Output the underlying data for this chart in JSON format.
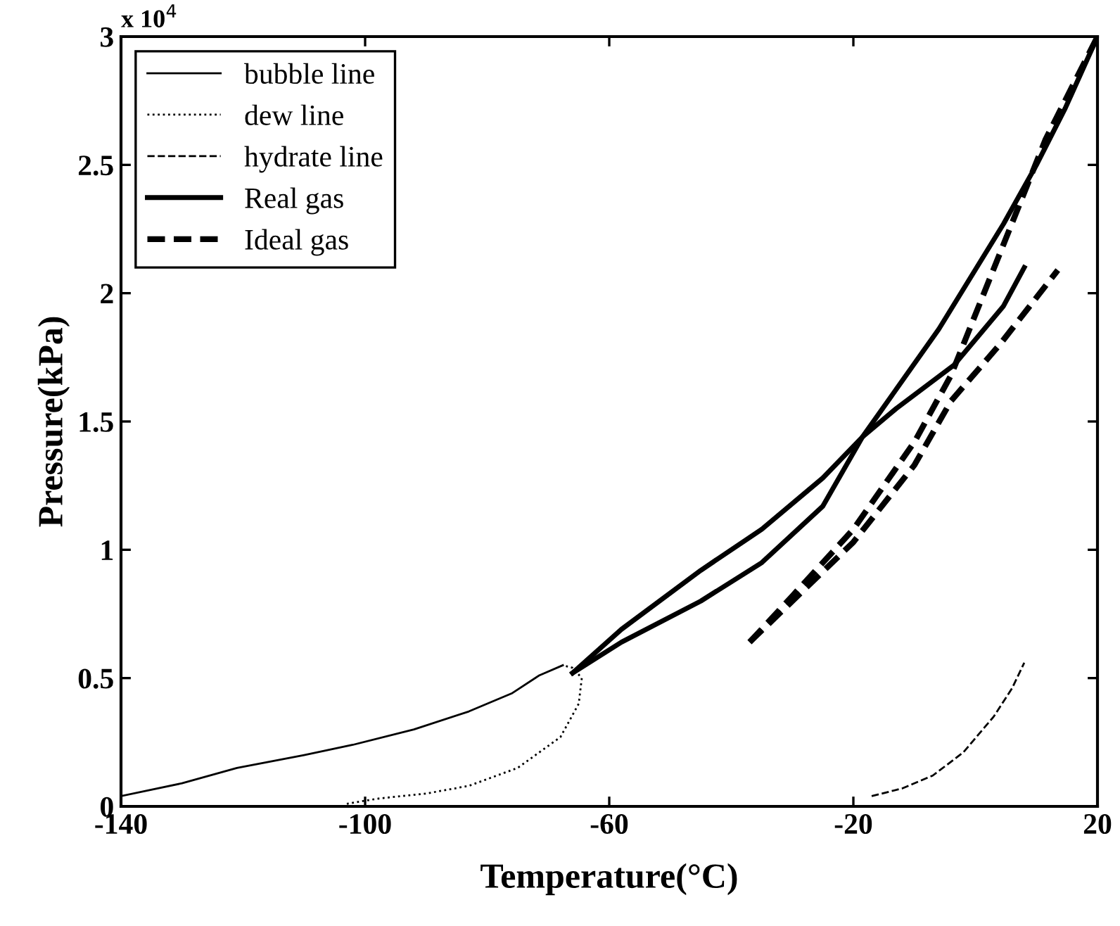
{
  "chart_data": {
    "type": "line",
    "xlabel": "Temperature(°C)",
    "ylabel": "Pressure(kPa)",
    "annotations": [
      "x 10$^{4}$"
    ],
    "xlim": [
      -140,
      20
    ],
    "xticks": [
      -140,
      -100,
      -60,
      -20,
      20
    ],
    "ylim": [
      0,
      3
    ],
    "yticks": [
      0,
      0.5,
      1,
      1.5,
      2,
      2.5,
      3
    ],
    "grid": false,
    "legend": "top left",
    "marker": "none",
    "series": [
      {
        "name": "bubble line",
        "color": "#000000",
        "line_style": "solid",
        "x": [
          -140,
          -130,
          -121,
          -110,
          -102,
          -92,
          -83,
          -76,
          -71.5,
          -67.6
        ],
        "values": [
          0.04,
          0.09,
          0.15,
          0.2,
          0.24,
          0.3,
          0.37,
          0.44,
          0.51,
          0.55
        ]
      },
      {
        "name": "dew line",
        "color": "#000000",
        "line_style": "dotted",
        "x": [
          -103,
          -98,
          -90,
          -83,
          -75,
          -68,
          -65,
          -64.5,
          -66,
          -67.6
        ],
        "values": [
          0.01,
          0.03,
          0.05,
          0.08,
          0.15,
          0.27,
          0.4,
          0.5,
          0.54,
          0.55
        ]
      },
      {
        "name": "hydrate line",
        "color": "#000000",
        "line_style": "dashed",
        "x": [
          -17,
          -12,
          -7,
          -2,
          3,
          6,
          8
        ],
        "values": [
          0.04,
          0.07,
          0.12,
          0.21,
          0.35,
          0.46,
          0.56
        ]
      },
      {
        "name": "Real gas",
        "color": "#000000",
        "line_style": "solid",
        "x": [
          -66,
          -58,
          -45,
          -35,
          -25,
          -18.5,
          -13,
          -3.5,
          4.6,
          8
        ],
        "values": [
          0.52,
          0.69,
          0.92,
          1.08,
          1.28,
          1.44,
          1.55,
          1.72,
          1.95,
          2.1
        ]
      },
      {
        "color": "#000000",
        "line_style": "solid",
        "x": [
          -66,
          -58,
          -45,
          -35,
          -25,
          -18.5,
          -6,
          4.6,
          10,
          14.7,
          20
        ],
        "values": [
          0.52,
          0.64,
          0.8,
          0.95,
          1.17,
          1.44,
          1.86,
          2.27,
          2.5,
          2.72,
          3.0
        ]
      },
      {
        "name": "Ideal gas",
        "color": "#000000",
        "line_style": "dashed",
        "x": [
          -37,
          -30,
          -20,
          -10,
          -4,
          4.6,
          11.5,
          20
        ],
        "values": [
          0.64,
          0.82,
          1.08,
          1.42,
          1.68,
          2.19,
          2.6,
          3.0
        ]
      },
      {
        "color": "#000000",
        "line_style": "dashed",
        "x": [
          -37,
          -30,
          -20,
          -10,
          -4,
          4,
          13.5
        ],
        "values": [
          0.64,
          0.8,
          1.03,
          1.33,
          1.58,
          1.8,
          2.09
        ]
      }
    ]
  }
}
